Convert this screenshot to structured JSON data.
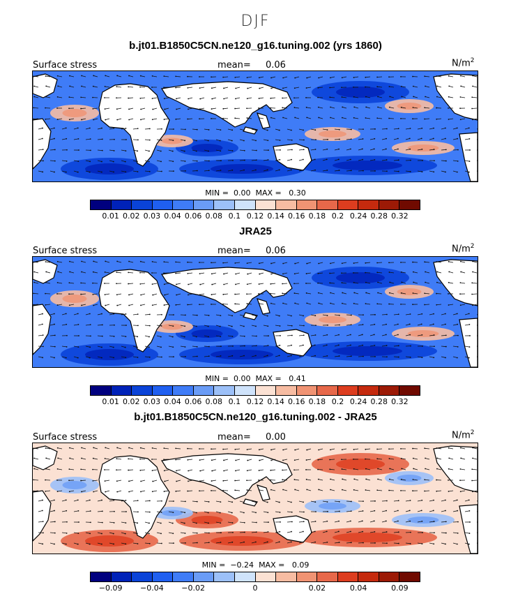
{
  "season_title": "DJF",
  "colors": [
    "#00007f",
    "#0022b8",
    "#0a43d8",
    "#1f5ff0",
    "#3f7cf7",
    "#6a9cf6",
    "#9cc0f8",
    "#cfe3fb",
    "#fbe1d3",
    "#f7bca2",
    "#f09373",
    "#e7684a",
    "#dd3d1f",
    "#c52a0e",
    "#9c1a06",
    "#700a00"
  ],
  "panels": [
    {
      "title": "b.jt01.B1850C5CN.ne120_g16.tuning.002 (yrs 1860)",
      "left_label": "Surface stress",
      "mean_label": "mean=",
      "mean_value": "0.06",
      "units": "N/m",
      "units_exp": "2",
      "min_label": "MIN =",
      "min_value": "0.00",
      "max_label": "MAX =",
      "max_value": "0.30",
      "ticks": [
        "0.01",
        "0.02",
        "0.03",
        "0.04",
        "0.06",
        "0.08",
        "0.1",
        "0.12",
        "0.14",
        "0.16",
        "0.18",
        "0.2",
        "0.24",
        "0.28",
        "0.32"
      ]
    },
    {
      "title": "JRA25",
      "left_label": "Surface stress",
      "mean_label": "mean=",
      "mean_value": "0.06",
      "units": "N/m",
      "units_exp": "2",
      "min_label": "MIN =",
      "min_value": "0.00",
      "max_label": "MAX =",
      "max_value": "0.41",
      "ticks": [
        "0.01",
        "0.02",
        "0.03",
        "0.04",
        "0.06",
        "0.08",
        "0.1",
        "0.12",
        "0.14",
        "0.16",
        "0.18",
        "0.2",
        "0.24",
        "0.28",
        "0.32"
      ]
    },
    {
      "title": "b.jt01.B1850C5CN.ne120_g16.tuning.002 - JRA25",
      "left_label": "Surface stress",
      "mean_label": "mean=",
      "mean_value": "0.00",
      "units": "N/m",
      "units_exp": "2",
      "min_label": "MIN =",
      "min_value": "−0.24",
      "max_label": "MAX =",
      "max_value": "0.09",
      "ticks": [
        "−0.09",
        "−0.04",
        "−0.02",
        "0",
        "0.02",
        "0.04",
        "0.09"
      ]
    }
  ]
}
